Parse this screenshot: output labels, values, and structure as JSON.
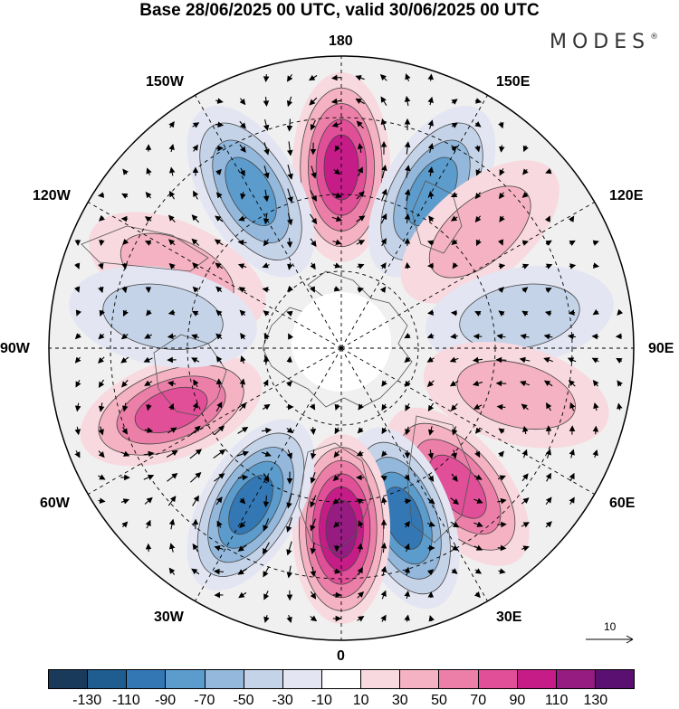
{
  "header": {
    "title": "Base 28/06/2025 00 UTC, valid 30/06/2025 00 UTC",
    "brand": "MODES",
    "brand_mark": "®"
  },
  "map": {
    "projection": "north-polar-stereographic",
    "longitude_labels": {
      "top": "180",
      "bottom": "0",
      "left": "90W",
      "right": "90E",
      "upper_left_1": "150W",
      "upper_left_2": "120W",
      "upper_right_1": "150E",
      "upper_right_2": "120E",
      "lower_left_1": "60W",
      "lower_left_2": "30W",
      "lower_right_1": "60E",
      "lower_right_2": "30E"
    },
    "reference_vector_label": "10",
    "anomaly_centers": [
      {
        "lon": 180,
        "sign": "positive",
        "strength": 0.9
      },
      {
        "lon": 150,
        "sign": "negative",
        "strength": 0.6
      },
      {
        "lon": -150,
        "sign": "negative",
        "strength": 0.6
      },
      {
        "lon": 130,
        "sign": "positive",
        "strength": 0.4
      },
      {
        "lon": -115,
        "sign": "positive",
        "strength": 0.4
      },
      {
        "lon": 100,
        "sign": "negative",
        "strength": 0.3
      },
      {
        "lon": 75,
        "sign": "positive",
        "strength": 0.4
      },
      {
        "lon": 40,
        "sign": "positive",
        "strength": 0.6
      },
      {
        "lon": 20,
        "sign": "negative",
        "strength": 0.75
      },
      {
        "lon": 0,
        "sign": "positive",
        "strength": 0.95
      },
      {
        "lon": -30,
        "sign": "negative",
        "strength": 0.8
      },
      {
        "lon": -70,
        "sign": "positive",
        "strength": 0.6
      },
      {
        "lon": -100,
        "sign": "negative",
        "strength": 0.3
      }
    ]
  },
  "colorbar": {
    "colors": [
      "#1a3a5c",
      "#1f5c8f",
      "#3378b4",
      "#5b9ccd",
      "#93b8dc",
      "#c5d3e8",
      "#e3e6f2",
      "#ffffff",
      "#f8d9df",
      "#f4b2c2",
      "#ec7fa8",
      "#e04f97",
      "#c61c88",
      "#961c82",
      "#5a1070"
    ],
    "tick_labels": [
      "-130",
      "-110",
      "-90",
      "-70",
      "-50",
      "-30",
      "-10",
      "10",
      "30",
      "50",
      "70",
      "90",
      "110",
      "130"
    ]
  }
}
